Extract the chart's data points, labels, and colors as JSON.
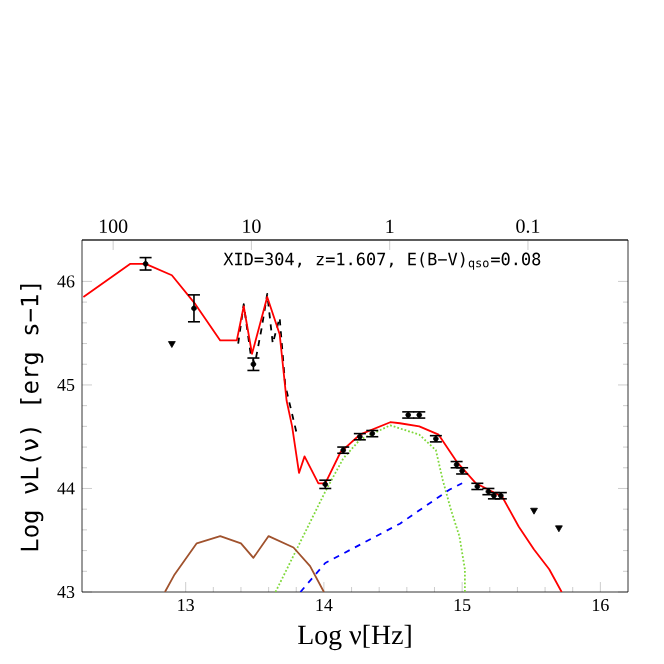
{
  "chart_data": {
    "type": "line",
    "xlabel": "Log ν[Hz]",
    "ylabel": "Log νL(ν) [erg s−1]",
    "annotations": [
      "XID=304, z=1.607, E(B−V)$_{qso}$=0.08"
    ],
    "xlim": [
      12.25,
      16.2
    ],
    "ylim": [
      43,
      46.4
    ],
    "xticks": [
      13,
      14,
      15,
      16
    ],
    "yticks": [
      43,
      44,
      45,
      46
    ],
    "x2lim": [
      168,
      0.0189
    ],
    "x2ticks": [
      100,
      10,
      1,
      0.1
    ],
    "log": "x2",
    "series": [
      {
        "color": "#000000",
        "line_style": "dashed",
        "x": [
          13.38,
          13.42,
          13.47,
          13.5,
          13.55,
          13.59,
          13.63,
          13.68,
          13.72,
          13.8
        ],
        "values": [
          45.4,
          45.78,
          45.3,
          45.2,
          45.55,
          45.88,
          45.4,
          45.65,
          45.0,
          44.55
        ]
      },
      {
        "color": "#ff0000",
        "line_style": "solid",
        "x": [
          12.26,
          12.6,
          12.71,
          12.9,
          13.07,
          13.25,
          13.37,
          13.42,
          13.48,
          13.59,
          13.68,
          13.73,
          13.77,
          13.82,
          13.86,
          13.96,
          14.01,
          14.12,
          14.26,
          14.48,
          14.55,
          14.69,
          14.83,
          14.96,
          15.1,
          15.29,
          15.41,
          15.52,
          15.63,
          15.72
        ],
        "values": [
          45.85,
          46.17,
          46.17,
          46.06,
          45.78,
          45.43,
          45.43,
          45.76,
          45.3,
          45.85,
          45.49,
          44.85,
          44.6,
          44.15,
          44.31,
          44.05,
          44.05,
          44.35,
          44.52,
          44.64,
          44.63,
          44.6,
          44.52,
          44.26,
          44.05,
          43.92,
          43.63,
          43.41,
          43.22,
          43.0
        ]
      },
      {
        "color": "#7fd83a",
        "line_style": "dotted",
        "x": [
          13.65,
          14.01,
          14.14,
          14.26,
          14.48,
          14.69,
          14.81,
          14.86,
          14.92,
          14.98,
          15.02,
          15.02
        ],
        "values": [
          43.0,
          43.97,
          44.29,
          44.47,
          44.61,
          44.52,
          44.37,
          44.08,
          43.79,
          43.54,
          43.22,
          43.0
        ]
      },
      {
        "color": "#0000ff",
        "line_style": "dashed",
        "x": [
          13.83,
          14.01,
          14.55,
          14.91,
          15.0
        ],
        "values": [
          43.0,
          43.28,
          43.66,
          43.99,
          44.05
        ]
      },
      {
        "color": "#a0522d",
        "line_style": "solid",
        "x": [
          12.85,
          12.92,
          13.08,
          13.25,
          13.4,
          13.49,
          13.6,
          13.78,
          13.9,
          14.0
        ],
        "values": [
          43.0,
          43.17,
          43.47,
          43.54,
          43.47,
          43.33,
          43.54,
          43.43,
          43.25,
          43.0
        ]
      },
      {
        "type": "scatter",
        "color": "#000000",
        "marker": "circle",
        "x": [
          12.71,
          13.06,
          13.49,
          14.01,
          14.14,
          14.26,
          14.35,
          14.61,
          14.69,
          14.81,
          14.96,
          15.0,
          15.11,
          15.19,
          15.23,
          15.28
        ],
        "values": [
          46.17,
          45.74,
          45.2,
          44.04,
          44.37,
          44.5,
          44.53,
          44.71,
          44.71,
          44.48,
          44.23,
          44.17,
          44.02,
          43.97,
          43.93,
          43.93
        ],
        "errors": [
          0.06,
          0.13,
          0.06,
          0.04,
          0.03,
          0.03,
          0.03,
          0.03,
          0.03,
          0.03,
          0.03,
          0.03,
          0.03,
          0.03,
          0.03,
          0.03
        ]
      },
      {
        "type": "scatter",
        "color": "#000000",
        "marker": "triangle",
        "x": [
          12.9,
          15.52,
          15.7
        ],
        "values": [
          45.4,
          43.79,
          43.62
        ]
      }
    ]
  }
}
